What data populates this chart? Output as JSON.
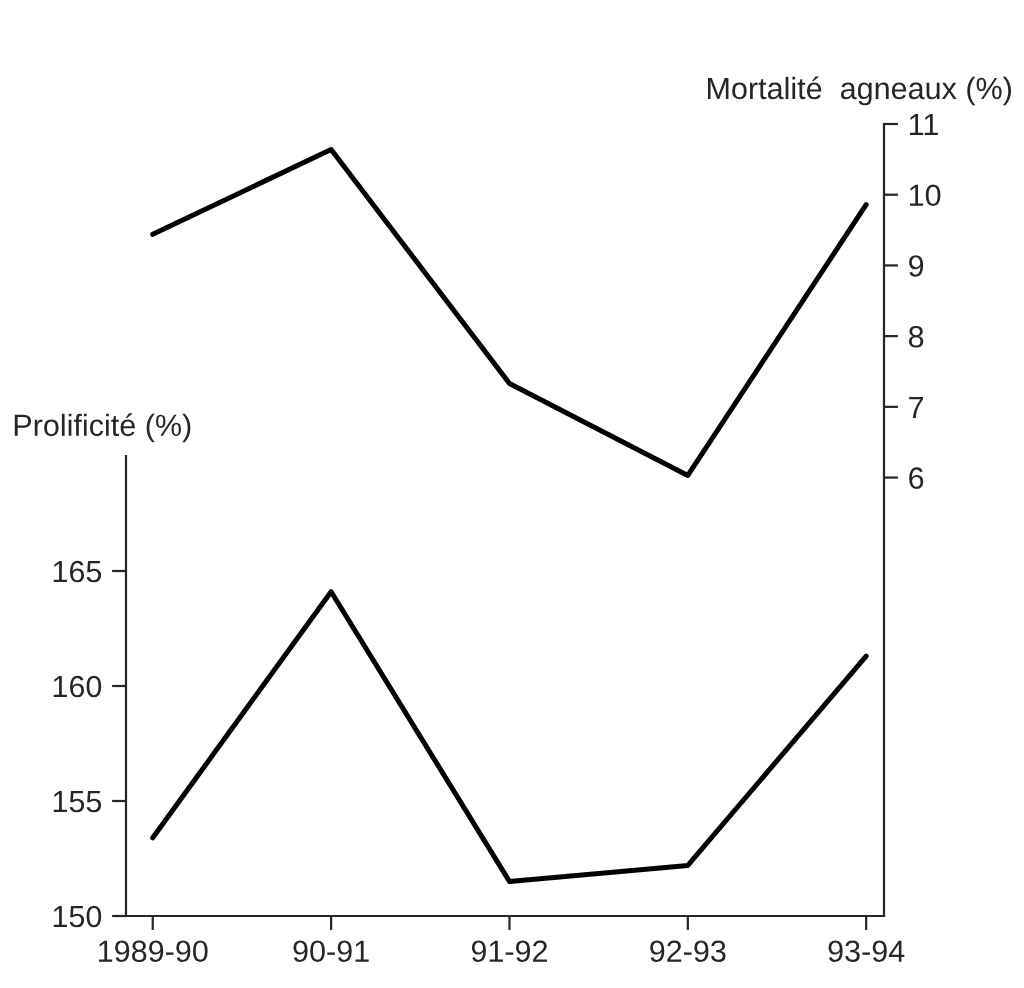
{
  "chart_data": {
    "type": "line",
    "ylabel": "Prolificité (%)",
    "y2label": "Mortalité  agneaux (%)",
    "categories": [
      "1989-90",
      "90-91",
      "91-92",
      "92-93",
      "93-94"
    ],
    "series": [
      {
        "color": "#000000",
        "values": [
          153.4,
          164.1,
          151.5,
          152.2,
          161.3
        ]
      },
      {
        "color": "#000000",
        "axis": "y2",
        "values": [
          9.44,
          10.64,
          7.33,
          6.03,
          9.86
        ]
      }
    ],
    "ylim": [
      150,
      170
    ],
    "yticks": [
      150,
      155,
      160,
      165
    ],
    "y2lim": [
      -0.2,
      11
    ],
    "y2ticks": [
      6,
      7,
      8,
      9,
      10,
      11
    ],
    "grid": false,
    "legend": false,
    "marker": "none",
    "line_style": "solid"
  }
}
